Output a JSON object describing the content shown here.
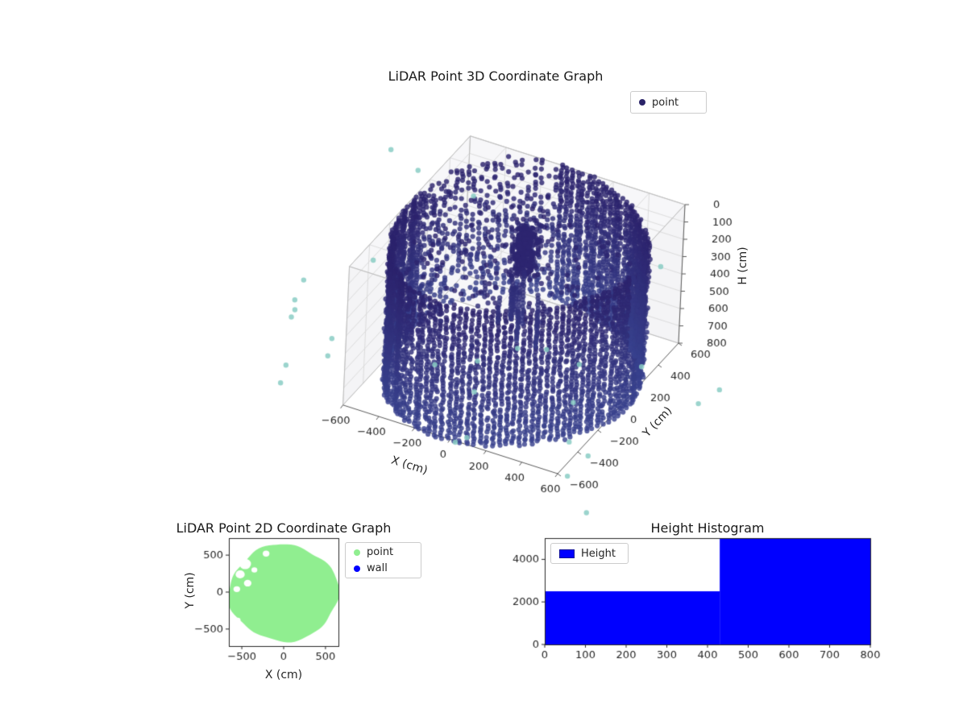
{
  "figure": {
    "background": "#ffffff"
  },
  "chart_data": [
    {
      "id": "lidar-3d",
      "type": "scatter",
      "projection": "3d",
      "title": "LiDAR Point 3D Coordinate Graph",
      "xlabel": "X (cm)",
      "ylabel": "Y (cm)",
      "zlabel": "H (cm)",
      "xlim": [
        -600,
        600
      ],
      "ylim": [
        -600,
        600
      ],
      "zlim": [
        0,
        800
      ],
      "z_axis_inverted": true,
      "xticks": [
        -600,
        -400,
        -200,
        0,
        200,
        400,
        600
      ],
      "yticks": [
        -600,
        -400,
        -200,
        0,
        200,
        400,
        600
      ],
      "zticks": [
        0,
        100,
        200,
        300,
        400,
        500,
        600,
        700,
        800
      ],
      "grid": true,
      "legend": [
        {
          "label": "point",
          "color": "#2a2368"
        }
      ],
      "point_colors": {
        "low": "#2b216b",
        "high": "#3f53a0",
        "outlier": "#8accc4"
      },
      "structure": {
        "wall": {
          "shape": "cylinder",
          "radius_cm": 620,
          "radius_wobble": 25,
          "columns": 120,
          "h_min": 15,
          "h_max": 790,
          "h_step": 16,
          "sparse_arc_deg": [
            100,
            170
          ]
        },
        "interior_scatter": {
          "count": 170,
          "max_radius": 560,
          "h_max": 420
        },
        "center_cluster": {
          "center_xy": [
            0,
            90
          ],
          "sigma_xy": 35,
          "h_range": [
            10,
            280
          ],
          "count": 300
        },
        "streaks": {
          "count": 9,
          "max_radius": 160,
          "h_start": [
            220,
            340
          ],
          "length": [
            80,
            340
          ]
        },
        "outliers": {
          "count": 24,
          "radius_range": [
            700,
            1130
          ],
          "h_range": [
            -60,
            940
          ],
          "below_count": 5
        }
      }
    },
    {
      "id": "lidar-2d",
      "type": "scatter",
      "title": "LiDAR Point 2D Coordinate Graph",
      "xlabel": "X (cm)",
      "ylabel": "Y (cm)",
      "xlim": [
        -655,
        655
      ],
      "ylim": [
        -730,
        730
      ],
      "xticks": [
        -500,
        0,
        500
      ],
      "yticks": [
        -500,
        0,
        500
      ],
      "legend": [
        {
          "label": "point",
          "color": "#90ee90"
        },
        {
          "label": "wall",
          "color": "#0000ff"
        }
      ],
      "blob": {
        "color": "#90ee90",
        "center": [
          0,
          -10
        ],
        "radius": 650,
        "notches": [
          [
            -460,
            380,
            70
          ],
          [
            -520,
            240,
            55
          ],
          [
            -430,
            120,
            45
          ],
          [
            -560,
            40,
            40
          ],
          [
            -350,
            300,
            35
          ],
          [
            -550,
            -380,
            35
          ],
          [
            -210,
            520,
            40
          ]
        ]
      }
    },
    {
      "id": "height-histogram",
      "type": "bar",
      "title": "Height Histogram",
      "xlabel": "",
      "ylabel": "",
      "bin_edges": [
        0,
        430,
        800
      ],
      "counts": [
        2500,
        5000
      ],
      "xlim": [
        0,
        800
      ],
      "ylim": [
        0,
        5000
      ],
      "xticks": [
        0,
        100,
        200,
        300,
        400,
        500,
        600,
        700,
        800
      ],
      "yticks": [
        0,
        2000,
        4000
      ],
      "bar_color": "#0000ff",
      "legend": [
        {
          "label": "Height",
          "color": "#0000ff"
        }
      ]
    }
  ]
}
